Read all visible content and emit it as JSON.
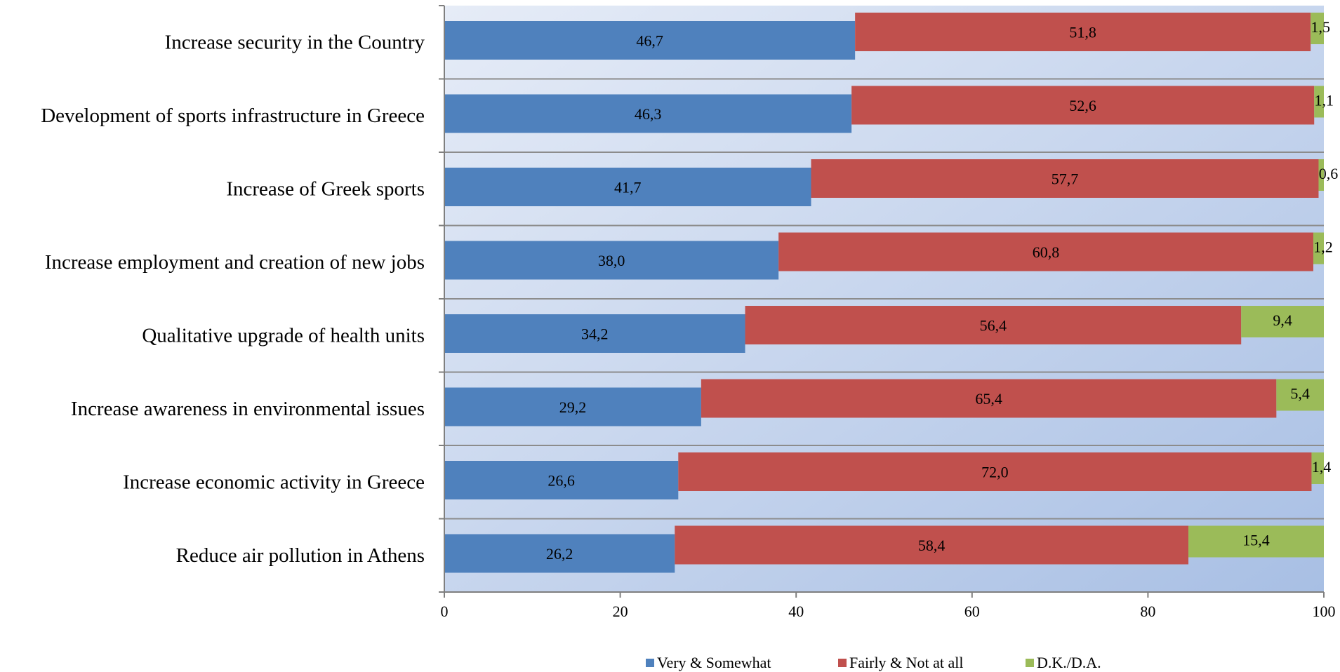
{
  "chart_data": {
    "type": "bar",
    "orientation": "horizontal",
    "stacked": true,
    "categories": [
      "Increase security in the Country",
      "Development of sports infrastructure in Greece",
      "Increase of Greek sports",
      "Increase employment and creation of new jobs",
      "Qualitative upgrade of health units",
      "Increase awareness in environmental issues",
      "Increase economic activity in Greece",
      "Reduce air pollution in Athens"
    ],
    "series": [
      {
        "name": "Very & Somewhat",
        "color": "#4F81BD",
        "values": [
          46.7,
          46.3,
          41.7,
          38.0,
          34.2,
          29.2,
          26.6,
          26.2
        ],
        "labels": [
          "46,7",
          "46,3",
          "41,7",
          "38,0",
          "34,2",
          "29,2",
          "26,6",
          "26,2"
        ]
      },
      {
        "name": "Fairly & Not at all",
        "color": "#C0504D",
        "values": [
          51.8,
          52.6,
          57.7,
          60.8,
          56.4,
          65.4,
          72.0,
          58.4
        ],
        "labels": [
          "51,8",
          "52,6",
          "57,7",
          "60,8",
          "56,4",
          "65,4",
          "72,0",
          "58,4"
        ]
      },
      {
        "name": "D.K./D.A.",
        "color": "#9BBB59",
        "values": [
          1.5,
          1.1,
          0.6,
          1.2,
          9.4,
          5.4,
          1.4,
          15.4
        ],
        "labels": [
          "1,5",
          "1,1",
          "0,6",
          "1,2",
          "9,4",
          "5,4",
          "1,4",
          "15,4"
        ]
      }
    ],
    "xlim": [
      0,
      100
    ],
    "xticks": [
      "0",
      "20",
      "40",
      "60",
      "80",
      "100"
    ],
    "grid": true,
    "legend_position": "bottom",
    "title": "",
    "xlabel": "",
    "ylabel": ""
  }
}
